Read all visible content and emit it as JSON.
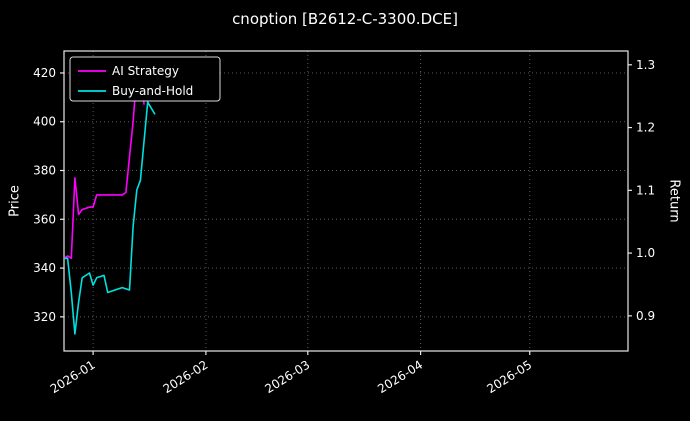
{
  "chart_data": {
    "type": "line",
    "title": "cnoption [B2612-C-3300.DCE]",
    "ylabel_left": "Price",
    "ylabel_right": "Return",
    "background": "#000000",
    "grid": true,
    "legend_position": "upper left",
    "x_domain": [
      "2025-12-24",
      "2026-05-28"
    ],
    "x_ticks": [
      {
        "label": "2026-01",
        "date": "2026-01-01"
      },
      {
        "label": "2026-02",
        "date": "2026-02-01"
      },
      {
        "label": "2026-03",
        "date": "2026-03-01"
      },
      {
        "label": "2026-04",
        "date": "2026-04-01"
      },
      {
        "label": "2026-05",
        "date": "2026-05-01"
      }
    ],
    "y_left": {
      "min": 306,
      "max": 429,
      "ticks": [
        320,
        340,
        360,
        380,
        400,
        420
      ]
    },
    "y_right": {
      "min": 0.844,
      "max": 1.322,
      "ticks": [
        0.9,
        1.0,
        1.1,
        1.2,
        1.3
      ]
    },
    "series": [
      {
        "name": "AI Strategy",
        "color": "#ff00ff",
        "points": [
          [
            "2025-12-24",
            344
          ],
          [
            "2025-12-25",
            345
          ],
          [
            "2025-12-26",
            344
          ],
          [
            "2025-12-27",
            377
          ],
          [
            "2025-12-28",
            362
          ],
          [
            "2025-12-29",
            364
          ],
          [
            "2025-12-31",
            365
          ],
          [
            "2026-01-01",
            365
          ],
          [
            "2026-01-02",
            370
          ],
          [
            "2026-01-05",
            370
          ],
          [
            "2026-01-09",
            370
          ],
          [
            "2026-01-10",
            371
          ],
          [
            "2026-01-12",
            400
          ],
          [
            "2026-01-13",
            420
          ],
          [
            "2026-01-14",
            420
          ],
          [
            "2026-01-15",
            407
          ]
        ]
      },
      {
        "name": "Buy-and-Hold",
        "color": "#00e0e0",
        "points": [
          [
            "2025-12-24",
            344
          ],
          [
            "2025-12-25",
            344
          ],
          [
            "2025-12-26",
            330
          ],
          [
            "2025-12-27",
            313
          ],
          [
            "2025-12-28",
            326
          ],
          [
            "2025-12-29",
            336
          ],
          [
            "2025-12-31",
            338
          ],
          [
            "2026-01-01",
            333
          ],
          [
            "2026-01-02",
            336
          ],
          [
            "2026-01-04",
            337
          ],
          [
            "2026-01-05",
            330
          ],
          [
            "2026-01-07",
            331
          ],
          [
            "2026-01-09",
            332
          ],
          [
            "2026-01-11",
            331
          ],
          [
            "2026-01-12",
            357
          ],
          [
            "2026-01-13",
            372
          ],
          [
            "2026-01-14",
            376
          ],
          [
            "2026-01-16",
            408
          ],
          [
            "2026-01-18",
            403
          ]
        ]
      }
    ]
  }
}
